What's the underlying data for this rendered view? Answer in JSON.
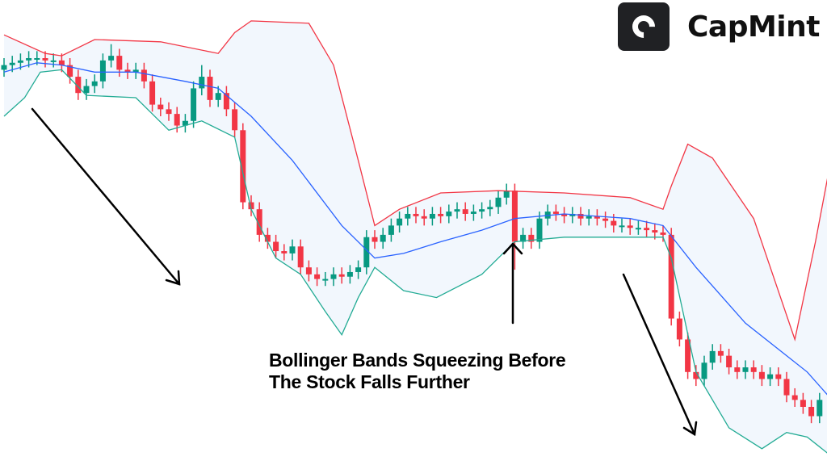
{
  "brand": {
    "logo_letter": "C",
    "name": "CapMint"
  },
  "annotation": {
    "line1": "Bollinger Bands Squeezing Before",
    "line2": "The Stock Falls Further"
  },
  "colors": {
    "up": "#089981",
    "down": "#F23645",
    "upper_band": "#F23645",
    "middle_band": "#2962FF",
    "lower_band": "#22AB94",
    "band_fill": "#F2F7FD",
    "arrow": "#000000"
  },
  "chart_data": {
    "type": "candlestick",
    "title": "",
    "xlabel": "",
    "ylabel": "",
    "axes_visible": false,
    "grid": false,
    "ylim": [
      0,
      200
    ],
    "candles": [
      [
        170,
        175,
        167,
        172
      ],
      [
        172,
        176,
        169,
        173
      ],
      [
        173,
        177,
        170,
        174
      ],
      [
        174,
        178,
        171,
        175
      ],
      [
        175,
        178,
        172,
        175
      ],
      [
        175,
        178,
        171,
        174
      ],
      [
        174,
        177,
        171,
        174
      ],
      [
        174,
        177,
        169,
        172
      ],
      [
        172,
        175,
        164,
        167
      ],
      [
        167,
        170,
        157,
        160
      ],
      [
        160,
        166,
        157,
        163
      ],
      [
        163,
        168,
        160,
        165
      ],
      [
        165,
        177,
        162,
        174
      ],
      [
        174,
        181,
        171,
        176
      ],
      [
        176,
        179,
        167,
        170
      ],
      [
        170,
        173,
        166,
        169
      ],
      [
        169,
        173,
        166,
        170
      ],
      [
        170,
        173,
        162,
        165
      ],
      [
        165,
        168,
        152,
        155
      ],
      [
        155,
        158,
        150,
        153
      ],
      [
        153,
        156,
        148,
        151
      ],
      [
        151,
        154,
        143,
        146
      ],
      [
        146,
        151,
        143,
        148
      ],
      [
        148,
        165,
        145,
        162
      ],
      [
        162,
        172,
        159,
        167
      ],
      [
        167,
        170,
        154,
        157
      ],
      [
        157,
        163,
        154,
        160
      ],
      [
        160,
        163,
        150,
        153
      ],
      [
        153,
        156,
        141,
        144
      ],
      [
        144,
        147,
        110,
        113
      ],
      [
        113,
        116,
        107,
        110
      ],
      [
        110,
        113,
        96,
        99
      ],
      [
        99,
        102,
        93,
        96
      ],
      [
        96,
        99,
        89,
        92
      ],
      [
        92,
        95,
        88,
        91
      ],
      [
        91,
        97,
        88,
        94
      ],
      [
        94,
        97,
        82,
        85
      ],
      [
        85,
        88,
        79,
        82
      ],
      [
        82,
        85,
        77,
        80
      ],
      [
        80,
        83,
        77,
        80
      ],
      [
        80,
        85,
        77,
        82
      ],
      [
        82,
        85,
        78,
        81
      ],
      [
        81,
        86,
        78,
        83
      ],
      [
        83,
        88,
        80,
        85
      ],
      [
        85,
        101,
        82,
        98
      ],
      [
        98,
        101,
        93,
        96
      ],
      [
        96,
        102,
        93,
        99
      ],
      [
        99,
        106,
        96,
        103
      ],
      [
        103,
        109,
        100,
        106
      ],
      [
        106,
        111,
        103,
        108
      ],
      [
        108,
        111,
        104,
        107
      ],
      [
        107,
        110,
        103,
        106
      ],
      [
        106,
        111,
        103,
        108
      ],
      [
        108,
        111,
        104,
        107
      ],
      [
        107,
        112,
        104,
        109
      ],
      [
        109,
        113,
        106,
        110
      ],
      [
        110,
        113,
        105,
        108
      ],
      [
        108,
        112,
        105,
        109
      ],
      [
        109,
        113,
        106,
        110
      ],
      [
        110,
        114,
        107,
        111
      ],
      [
        111,
        118,
        108,
        115
      ],
      [
        115,
        121,
        112,
        118
      ],
      [
        118,
        121,
        84,
        96
      ],
      [
        96,
        102,
        93,
        99
      ],
      [
        99,
        102,
        93,
        96
      ],
      [
        96,
        109,
        93,
        106
      ],
      [
        106,
        112,
        103,
        109
      ],
      [
        109,
        112,
        105,
        108
      ],
      [
        108,
        111,
        104,
        107
      ],
      [
        107,
        111,
        104,
        108
      ],
      [
        108,
        111,
        103,
        106
      ],
      [
        106,
        110,
        103,
        107
      ],
      [
        107,
        110,
        103,
        106
      ],
      [
        106,
        109,
        102,
        105
      ],
      [
        105,
        108,
        100,
        103
      ],
      [
        103,
        106,
        100,
        103
      ],
      [
        103,
        106,
        99,
        102
      ],
      [
        102,
        105,
        99,
        102
      ],
      [
        102,
        105,
        98,
        101
      ],
      [
        101,
        104,
        97,
        100
      ],
      [
        100,
        103,
        96,
        99
      ],
      [
        99,
        102,
        60,
        63
      ],
      [
        63,
        66,
        51,
        54
      ],
      [
        54,
        57,
        37,
        40
      ],
      [
        40,
        43,
        34,
        37
      ],
      [
        37,
        47,
        34,
        44
      ],
      [
        44,
        52,
        41,
        49
      ],
      [
        49,
        52,
        44,
        47
      ],
      [
        47,
        50,
        39,
        42
      ],
      [
        42,
        45,
        37,
        40
      ],
      [
        40,
        45,
        37,
        42
      ],
      [
        42,
        45,
        37,
        40
      ],
      [
        40,
        43,
        34,
        37
      ],
      [
        37,
        42,
        34,
        39
      ],
      [
        39,
        42,
        34,
        37
      ],
      [
        37,
        40,
        27,
        30
      ],
      [
        30,
        33,
        25,
        28
      ],
      [
        28,
        31,
        22,
        25
      ],
      [
        25,
        28,
        18,
        21
      ],
      [
        21,
        31,
        18,
        28
      ]
    ],
    "bollinger": {
      "upper": [
        [
          0,
          185
        ],
        [
          5,
          177
        ],
        [
          7,
          176
        ],
        [
          11,
          183
        ],
        [
          19,
          182
        ],
        [
          26,
          177
        ],
        [
          28,
          186
        ],
        [
          30,
          191
        ],
        [
          37,
          190
        ],
        [
          40,
          172
        ],
        [
          43,
          131
        ],
        [
          45,
          103
        ],
        [
          48,
          110
        ],
        [
          53,
          117
        ],
        [
          60,
          118
        ],
        [
          68,
          117
        ],
        [
          76,
          115
        ],
        [
          80,
          110
        ],
        [
          81,
          120
        ],
        [
          83,
          138
        ],
        [
          86,
          132
        ],
        [
          91,
          106
        ],
        [
          96,
          54
        ],
        [
          98.5,
          96
        ],
        [
          100,
          124
        ]
      ],
      "middle": [
        [
          0,
          169
        ],
        [
          4,
          173
        ],
        [
          7,
          172
        ],
        [
          11,
          169
        ],
        [
          16,
          169
        ],
        [
          22,
          165
        ],
        [
          26,
          162
        ],
        [
          30,
          150
        ],
        [
          35,
          131
        ],
        [
          41,
          103
        ],
        [
          45,
          89
        ],
        [
          48.5,
          91
        ],
        [
          53,
          96
        ],
        [
          58,
          101
        ],
        [
          62,
          106
        ],
        [
          68,
          108
        ],
        [
          76,
          106
        ],
        [
          80,
          103
        ],
        [
          84,
          85
        ],
        [
          90,
          61
        ],
        [
          95,
          47
        ],
        [
          97.5,
          40
        ],
        [
          100,
          30
        ]
      ],
      "lower": [
        [
          0,
          150
        ],
        [
          2.5,
          158
        ],
        [
          4.4,
          169
        ],
        [
          7,
          170
        ],
        [
          10,
          159
        ],
        [
          16,
          158
        ],
        [
          20,
          144
        ],
        [
          24,
          148
        ],
        [
          28,
          141
        ],
        [
          30,
          110
        ],
        [
          33,
          89
        ],
        [
          36,
          82
        ],
        [
          39,
          66
        ],
        [
          41,
          56
        ],
        [
          43,
          72
        ],
        [
          45,
          85
        ],
        [
          48.5,
          75
        ],
        [
          52.5,
          72
        ],
        [
          58,
          82
        ],
        [
          62,
          96
        ],
        [
          68,
          98
        ],
        [
          74,
          98
        ],
        [
          80,
          98
        ],
        [
          81,
          89
        ],
        [
          84,
          40
        ],
        [
          88,
          16
        ],
        [
          92,
          7
        ],
        [
          95,
          14
        ],
        [
          97.5,
          12
        ],
        [
          100,
          5
        ]
      ]
    }
  }
}
